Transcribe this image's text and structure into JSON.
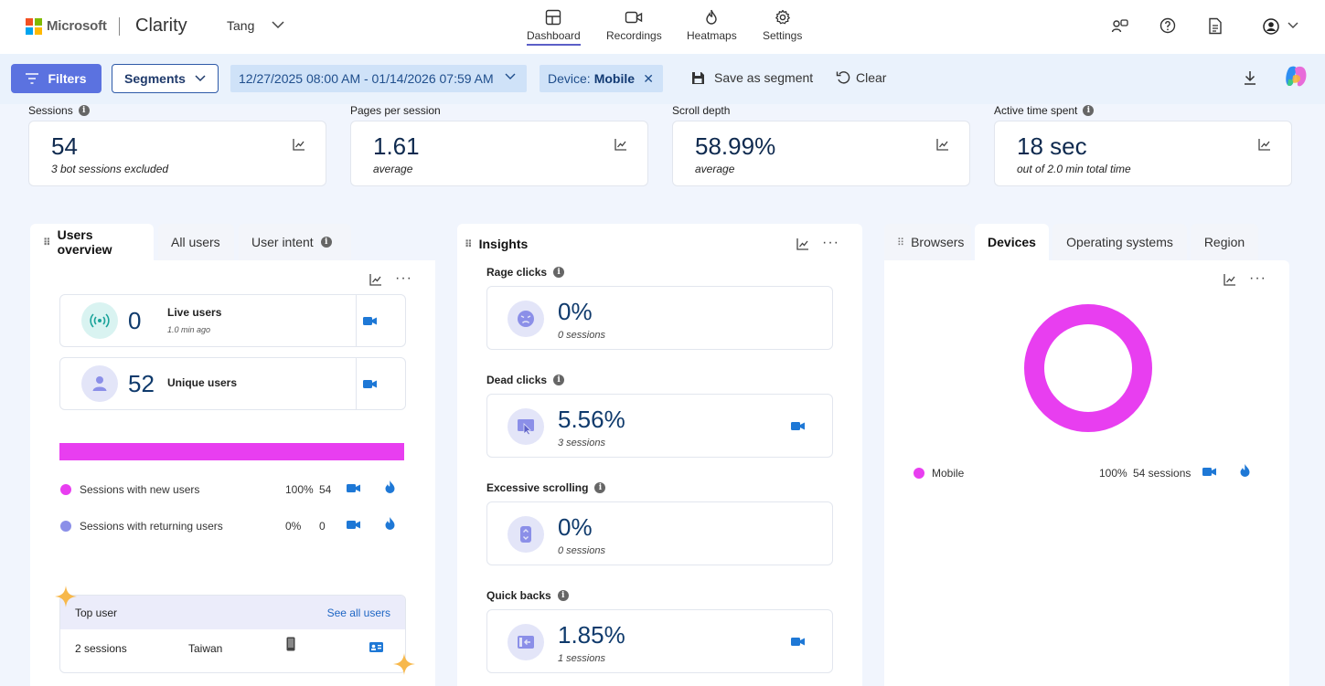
{
  "header": {
    "brand": "Microsoft",
    "app": "Clarity",
    "project": "Tang",
    "nav": [
      {
        "label": "Dashboard",
        "icon": "dashboard-icon",
        "active": true
      },
      {
        "label": "Recordings",
        "icon": "video-icon"
      },
      {
        "label": "Heatmaps",
        "icon": "flame-icon"
      },
      {
        "label": "Settings",
        "icon": "gear-icon"
      }
    ]
  },
  "filterbar": {
    "filters": "Filters",
    "segments": "Segments",
    "date_range": "12/27/2025 08:00 AM - 01/14/2026 07:59 AM",
    "device_key": "Device:",
    "device_value": "Mobile",
    "save_segment": "Save as segment",
    "clear": "Clear"
  },
  "metrics": [
    {
      "label": "Sessions",
      "value": "54",
      "sub": "3 bot sessions excluded",
      "info": true
    },
    {
      "label": "Pages per session",
      "value": "1.61",
      "sub": "average",
      "info": false
    },
    {
      "label": "Scroll depth",
      "value": "58.99%",
      "sub": "average",
      "info": false
    },
    {
      "label": "Active time spent",
      "value": "18 sec",
      "sub": "out of 2.0 min total time",
      "info": true
    }
  ],
  "users_panel": {
    "tabs": [
      "Users overview",
      "All users",
      "User intent"
    ],
    "live_value": "0",
    "live_label": "Live users",
    "live_sub": "1.0 min ago",
    "unique_value": "52",
    "unique_label": "Unique users",
    "bar_fraction_new": 1.0,
    "rows": [
      {
        "label": "Sessions with new users",
        "pct": "100%",
        "count": "54",
        "color": "#e83ef0"
      },
      {
        "label": "Sessions with returning users",
        "pct": "0%",
        "count": "0",
        "color": "#8b8fe8"
      }
    ],
    "top_user_title": "Top user",
    "see_all": "See all users",
    "top_sessions": "2 sessions",
    "top_country": "Taiwan"
  },
  "insights": {
    "title": "Insights",
    "items": [
      {
        "label": "Rage clicks",
        "value": "0%",
        "sub": "0 sessions",
        "icon": "angry-face-icon",
        "cam": false
      },
      {
        "label": "Dead clicks",
        "value": "5.56%",
        "sub": "3 sessions",
        "icon": "dead-click-icon",
        "cam": true
      },
      {
        "label": "Excessive scrolling",
        "value": "0%",
        "sub": "0 sessions",
        "icon": "scroll-icon",
        "cam": false
      },
      {
        "label": "Quick backs",
        "value": "1.85%",
        "sub": "1 sessions",
        "icon": "quick-back-icon",
        "cam": true
      }
    ]
  },
  "devices_panel": {
    "tabs": [
      "Browsers",
      "Devices",
      "Operating systems",
      "Region"
    ],
    "legend_label": "Mobile",
    "legend_pct": "100%",
    "legend_sessions": "54 sessions",
    "color": "#e83ef0"
  },
  "chart_data": {
    "type": "pie",
    "title": "Devices",
    "categories": [
      "Mobile"
    ],
    "values": [
      100
    ],
    "sessions": [
      54
    ]
  }
}
